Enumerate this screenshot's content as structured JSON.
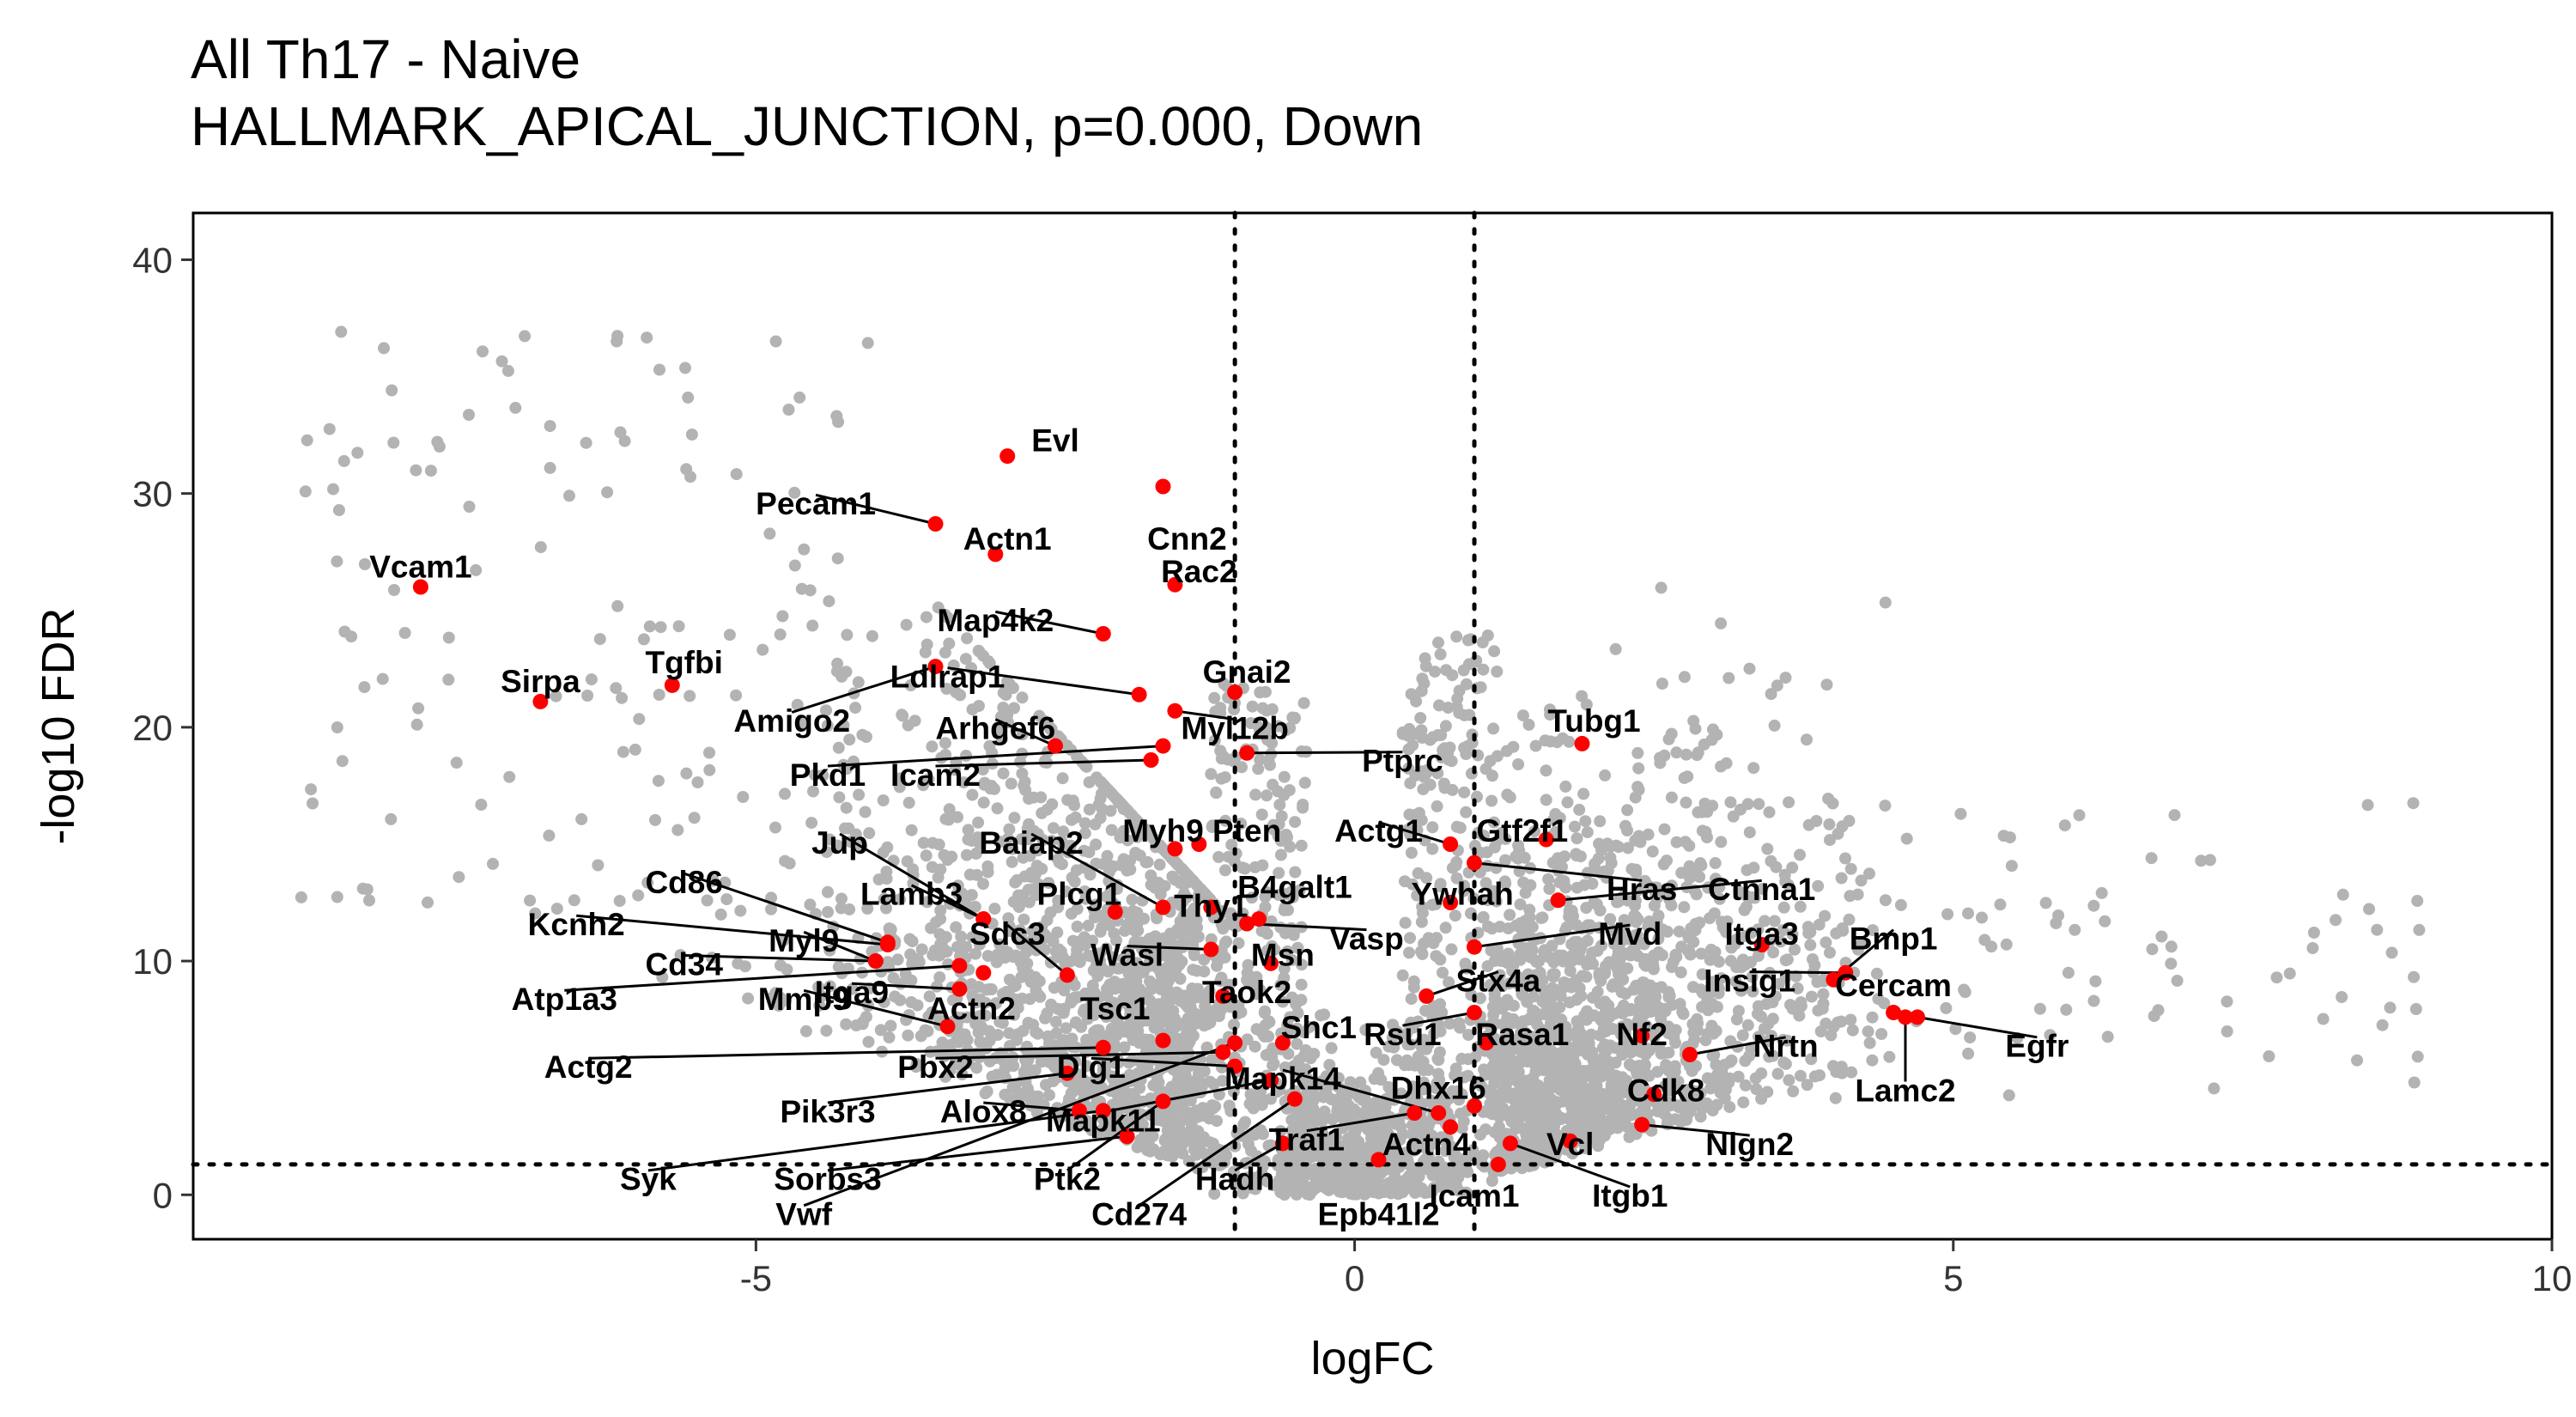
{
  "title": {
    "line1": "All Th17 - Naive",
    "line2": "HALLMARK_APICAL_JUNCTION, p=0.000, Down"
  },
  "colors": {
    "background_points": "#b3b3b3",
    "highlight_points": "#ff0000",
    "axis": "#000000",
    "threshold_line": "#000000"
  },
  "chart_data": {
    "type": "scatter",
    "xlabel": "logFC",
    "ylabel": "-log10 FDR",
    "xlim": [
      -9.7,
      10
    ],
    "ylim": [
      -1.9,
      42
    ],
    "x_ticks": [
      -5,
      0,
      5,
      10
    ],
    "y_ticks": [
      0,
      10,
      20,
      30,
      40
    ],
    "x_tick_labels": [
      "-5",
      "0",
      "5",
      "10"
    ],
    "y_tick_labels": [
      "0",
      "10",
      "20",
      "30",
      "40"
    ],
    "thresholds": {
      "logFC": [
        -1,
        1
      ],
      "neg_log10_fdr": 1.3
    },
    "grid": false,
    "legend": "none",
    "highlighted_genes": [
      {
        "label": "Evl",
        "x": -2.9,
        "y": 31.6,
        "lx": -2.5,
        "ly": 32.2
      },
      {
        "label": "Pecam1",
        "x": -3.5,
        "y": 28.7,
        "lx": -4.5,
        "ly": 29.5
      },
      {
        "label": "Cnn2",
        "x": -1.6,
        "y": 30.3,
        "lx": -1.4,
        "ly": 28.0
      },
      {
        "label": "Actn1",
        "x": -3.0,
        "y": 27.4,
        "lx": -2.9,
        "ly": 28.0
      },
      {
        "label": "Rac2",
        "x": -1.5,
        "y": 26.1,
        "lx": -1.3,
        "ly": 26.6
      },
      {
        "label": "Vcam1",
        "x": -7.8,
        "y": 26.0,
        "lx": -7.8,
        "ly": 26.8
      },
      {
        "label": "Map4k2",
        "x": -2.1,
        "y": 24.0,
        "lx": -3.0,
        "ly": 24.5
      },
      {
        "label": "Gnai2",
        "x": -1.0,
        "y": 21.5,
        "lx": -0.9,
        "ly": 22.3
      },
      {
        "label": "Ldlrap1",
        "x": -1.8,
        "y": 21.4,
        "lx": -3.4,
        "ly": 22.1
      },
      {
        "label": "Amigo2",
        "x": -3.5,
        "y": 22.6,
        "lx": -4.7,
        "ly": 20.2
      },
      {
        "label": "Tgfbi",
        "x": -5.7,
        "y": 21.8,
        "lx": -5.6,
        "ly": 22.7
      },
      {
        "label": "Sirpa",
        "x": -6.8,
        "y": 21.1,
        "lx": -6.8,
        "ly": 21.9
      },
      {
        "label": "Arhgef6",
        "x": -2.5,
        "y": 19.2,
        "lx": -3.0,
        "ly": 19.9
      },
      {
        "label": "Myl12b",
        "x": -1.5,
        "y": 20.7,
        "lx": -1.0,
        "ly": 19.9
      },
      {
        "label": "Ptprc",
        "x": -0.9,
        "y": 18.9,
        "lx": 0.4,
        "ly": 18.5
      },
      {
        "label": "Icam2",
        "x": -1.7,
        "y": 18.6,
        "lx": -3.5,
        "ly": 17.9
      },
      {
        "label": "Pkd1",
        "x": -1.6,
        "y": 19.2,
        "lx": -4.4,
        "ly": 17.9
      },
      {
        "label": "Tubg1",
        "x": 1.9,
        "y": 19.3,
        "lx": 2.0,
        "ly": 20.2
      },
      {
        "label": "Myh9",
        "x": -1.5,
        "y": 14.8,
        "lx": -1.6,
        "ly": 15.5
      },
      {
        "label": "Pten",
        "x": -1.3,
        "y": 15.0,
        "lx": -0.9,
        "ly": 15.5
      },
      {
        "label": "Jup",
        "x": -3.1,
        "y": 11.8,
        "lx": -4.3,
        "ly": 15.0
      },
      {
        "label": "Baiap2",
        "x": -1.6,
        "y": 12.3,
        "lx": -2.7,
        "ly": 15.0
      },
      {
        "label": "Actg1",
        "x": 0.8,
        "y": 15.0,
        "lx": 0.2,
        "ly": 15.5
      },
      {
        "label": "Gtf2f1",
        "x": 1.6,
        "y": 15.2,
        "lx": 1.4,
        "ly": 15.5
      },
      {
        "label": "Hras",
        "x": 1.0,
        "y": 14.2,
        "lx": 2.4,
        "ly": 13.0
      },
      {
        "label": "Ctnna1",
        "x": 1.7,
        "y": 12.6,
        "lx": 3.4,
        "ly": 13.0
      },
      {
        "label": "Lamb3",
        "x": -3.1,
        "y": 11.8,
        "lx": -3.7,
        "ly": 12.8
      },
      {
        "label": "Plcg1",
        "x": -2.0,
        "y": 12.1,
        "lx": -2.3,
        "ly": 12.8
      },
      {
        "label": "B4galt1",
        "x": -0.8,
        "y": 11.8,
        "lx": -0.5,
        "ly": 13.1
      },
      {
        "label": "Ywhah",
        "x": 0.8,
        "y": 12.5,
        "lx": 0.9,
        "ly": 12.8
      },
      {
        "label": "Cd86",
        "x": -3.9,
        "y": 10.8,
        "lx": -5.6,
        "ly": 13.3
      },
      {
        "label": "Thy1",
        "x": -1.2,
        "y": 12.3,
        "lx": -1.2,
        "ly": 12.3
      },
      {
        "label": "Kcnh2",
        "x": -3.9,
        "y": 10.7,
        "lx": -6.5,
        "ly": 11.5
      },
      {
        "label": "Sdc3",
        "x": -2.4,
        "y": 9.4,
        "lx": -2.9,
        "ly": 11.1
      },
      {
        "label": "Myl9",
        "x": -4.0,
        "y": 10.0,
        "lx": -4.6,
        "ly": 10.8
      },
      {
        "label": "Mvd",
        "x": 1.0,
        "y": 10.6,
        "lx": 2.3,
        "ly": 11.1
      },
      {
        "label": "Itga3",
        "x": 3.4,
        "y": 10.7,
        "lx": 3.4,
        "ly": 11.1
      },
      {
        "label": "Bmp1",
        "x": 4.0,
        "y": 9.2,
        "lx": 4.5,
        "ly": 10.9
      },
      {
        "label": "Vasp",
        "x": -0.9,
        "y": 11.6,
        "lx": 0.1,
        "ly": 10.9
      },
      {
        "label": "Wasl",
        "x": -1.2,
        "y": 10.5,
        "lx": -1.9,
        "ly": 10.2
      },
      {
        "label": "Msn",
        "x": -0.7,
        "y": 9.9,
        "lx": -0.6,
        "ly": 10.2
      },
      {
        "label": "Cd34",
        "x": -4.0,
        "y": 10.0,
        "lx": -5.6,
        "ly": 9.8
      },
      {
        "label": "Stx4a",
        "x": 0.6,
        "y": 8.5,
        "lx": 1.2,
        "ly": 9.1
      },
      {
        "label": "Insig1",
        "x": 4.1,
        "y": 9.5,
        "lx": 3.3,
        "ly": 9.1
      },
      {
        "label": "Cercam",
        "x": 4.5,
        "y": 7.8,
        "lx": 4.5,
        "ly": 8.9
      },
      {
        "label": "Atp1a3",
        "x": -3.3,
        "y": 9.8,
        "lx": -6.6,
        "ly": 8.3
      },
      {
        "label": "Mmp9",
        "x": -3.4,
        "y": 7.2,
        "lx": -4.6,
        "ly": 8.3
      },
      {
        "label": "Itga9",
        "x": -3.3,
        "y": 8.8,
        "lx": -4.2,
        "ly": 8.6
      },
      {
        "label": "Taok2",
        "x": -1.1,
        "y": 8.5,
        "lx": -0.9,
        "ly": 8.6
      },
      {
        "label": "Actn2",
        "x": -3.1,
        "y": 9.5,
        "lx": -3.2,
        "ly": 7.9
      },
      {
        "label": "Tsc1",
        "x": -1.6,
        "y": 6.6,
        "lx": -2.0,
        "ly": 7.9
      },
      {
        "label": "Shc1",
        "x": -0.6,
        "y": 6.5,
        "lx": -0.3,
        "ly": 7.1
      },
      {
        "label": "Rsu1",
        "x": 1.0,
        "y": 7.8,
        "lx": 0.4,
        "ly": 6.8
      },
      {
        "label": "Rasa1",
        "x": 1.1,
        "y": 6.5,
        "lx": 1.4,
        "ly": 6.8
      },
      {
        "label": "Nf2",
        "x": 2.4,
        "y": 6.8,
        "lx": 2.4,
        "ly": 6.8
      },
      {
        "label": "Egfr",
        "x": 4.7,
        "y": 7.6,
        "lx": 5.7,
        "ly": 6.3
      },
      {
        "label": "Nrtn",
        "x": 2.8,
        "y": 6.0,
        "lx": 3.6,
        "ly": 6.3
      },
      {
        "label": "Actg2",
        "x": -2.1,
        "y": 6.3,
        "lx": -6.4,
        "ly": 5.4
      },
      {
        "label": "Pbx2",
        "x": -1.1,
        "y": 6.1,
        "lx": -3.5,
        "ly": 5.4
      },
      {
        "label": "Dlg1",
        "x": -1.0,
        "y": 5.5,
        "lx": -2.2,
        "ly": 5.4
      },
      {
        "label": "Mapk14",
        "x": 0.7,
        "y": 3.5,
        "lx": -0.6,
        "ly": 4.9
      },
      {
        "label": "Dhx16",
        "x": 1.0,
        "y": 3.8,
        "lx": 0.7,
        "ly": 4.5
      },
      {
        "label": "Cdk8",
        "x": 2.5,
        "y": 4.3,
        "lx": 2.6,
        "ly": 4.4
      },
      {
        "label": "Lamc2",
        "x": 4.6,
        "y": 7.6,
        "lx": 4.6,
        "ly": 4.4
      },
      {
        "label": "Pik3r3",
        "x": -2.4,
        "y": 5.2,
        "lx": -4.4,
        "ly": 3.5
      },
      {
        "label": "Alox8",
        "x": -2.3,
        "y": 3.6,
        "lx": -3.1,
        "ly": 3.5
      },
      {
        "label": "Mapk11",
        "x": -0.7,
        "y": 4.9,
        "lx": -2.1,
        "ly": 3.1
      },
      {
        "label": "Traf1",
        "x": 0.5,
        "y": 3.5,
        "lx": -0.4,
        "ly": 2.3
      },
      {
        "label": "Actn4",
        "x": 0.8,
        "y": 2.9,
        "lx": 0.6,
        "ly": 2.1
      },
      {
        "label": "Vcl",
        "x": 1.8,
        "y": 2.3,
        "lx": 1.8,
        "ly": 2.1
      },
      {
        "label": "Nlgn2",
        "x": 2.4,
        "y": 3.0,
        "lx": 3.3,
        "ly": 2.1
      },
      {
        "label": "Syk",
        "x": -2.1,
        "y": 3.6,
        "lx": -5.9,
        "ly": 0.6
      },
      {
        "label": "Sorbs3",
        "x": -1.9,
        "y": 2.5,
        "lx": -4.4,
        "ly": 0.6
      },
      {
        "label": "Ptk2",
        "x": -1.6,
        "y": 4.0,
        "lx": -2.4,
        "ly": 0.6
      },
      {
        "label": "Hadh",
        "x": -0.6,
        "y": 2.2,
        "lx": -1.0,
        "ly": 0.6
      },
      {
        "label": "Icam1",
        "x": 1.2,
        "y": 1.3,
        "lx": 1.0,
        "ly": -0.1
      },
      {
        "label": "Itgb1",
        "x": 1.3,
        "y": 2.2,
        "lx": 2.3,
        "ly": -0.1
      },
      {
        "label": "Vwf",
        "x": -1.0,
        "y": 6.5,
        "lx": -4.6,
        "ly": -0.9
      },
      {
        "label": "Cd274",
        "x": -0.5,
        "y": 4.1,
        "lx": -1.8,
        "ly": -0.9
      },
      {
        "label": "Epb41l2",
        "x": 0.2,
        "y": 1.5,
        "lx": 0.2,
        "ly": -0.9
      }
    ]
  }
}
